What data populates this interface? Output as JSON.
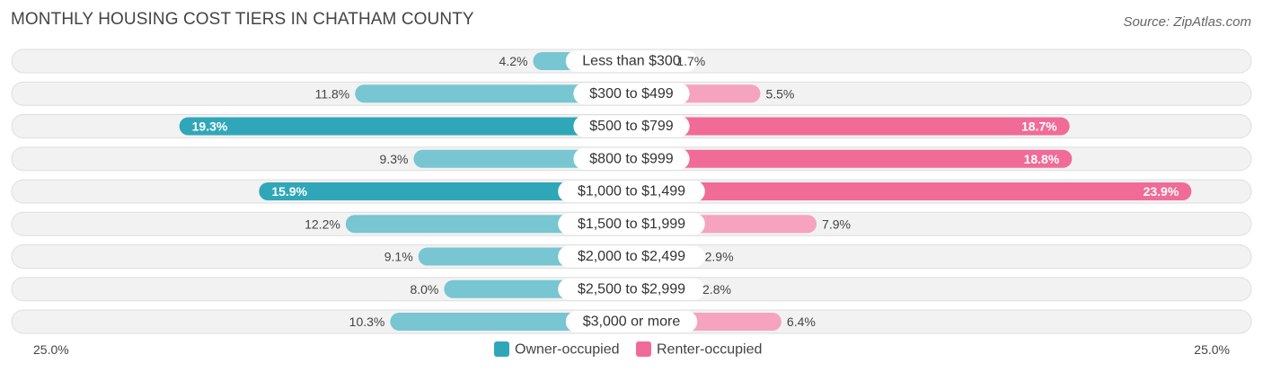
{
  "header": {
    "title": "MONTHLY HOUSING COST TIERS IN CHATHAM COUNTY",
    "source": "Source: ZipAtlas.com"
  },
  "colors": {
    "owner_light": "#77c6d2",
    "owner_dark": "#2fa7b8",
    "renter_light": "#f6a3bf",
    "renter_dark": "#f06b96"
  },
  "chart_data": {
    "type": "bar",
    "title": "MONTHLY HOUSING COST TIERS IN CHATHAM COUNTY",
    "categories": [
      "Less than $300",
      "$300 to $499",
      "$500 to $799",
      "$800 to $999",
      "$1,000 to $1,499",
      "$1,500 to $1,999",
      "$2,000 to $2,499",
      "$2,500 to $2,999",
      "$3,000 or more"
    ],
    "series": [
      {
        "name": "Owner-occupied",
        "values": [
          4.2,
          11.8,
          19.3,
          9.3,
          15.9,
          12.2,
          9.1,
          8.0,
          10.3
        ]
      },
      {
        "name": "Renter-occupied",
        "values": [
          1.7,
          5.5,
          18.7,
          18.8,
          23.9,
          7.9,
          2.9,
          2.8,
          6.4
        ]
      }
    ],
    "axis": {
      "left_label": "25.0%",
      "right_label": "25.0%",
      "max": 25.0
    },
    "legend": {
      "position": "bottom-center"
    }
  }
}
